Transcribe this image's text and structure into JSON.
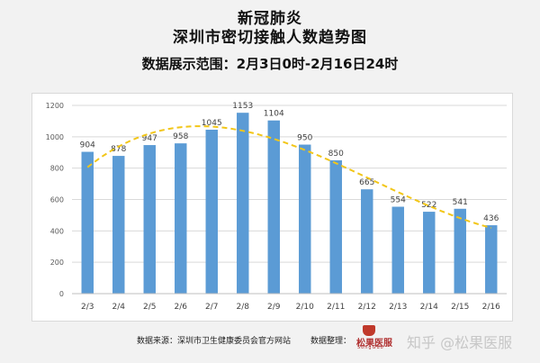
{
  "header": {
    "title_line1": "新冠肺炎",
    "title_line2": "深圳市密切接触人数趋势图",
    "subtitle": "数据展示范围：2月3日0时-2月16日24时"
  },
  "footer": {
    "source": "数据来源：深圳市卫生健康委员会官方网站",
    "compiler": "数据整理：",
    "logo_text": "松果医服",
    "logo_sub": "SongGuo",
    "watermark": "知乎 @松果医服"
  },
  "colors": {
    "bar": "#5b9bd5",
    "trend": "#f2c618",
    "grid": "#d9d9d9"
  },
  "chart_data": {
    "type": "bar",
    "categories": [
      "2/3",
      "2/4",
      "2/5",
      "2/6",
      "2/7",
      "2/8",
      "2/9",
      "2/10",
      "2/11",
      "2/12",
      "2/13",
      "2/14",
      "2/15",
      "2/16"
    ],
    "values": [
      904,
      878,
      947,
      958,
      1045,
      1153,
      1104,
      950,
      850,
      665,
      554,
      522,
      541,
      436
    ],
    "yticks": [
      0,
      200,
      400,
      600,
      800,
      1000,
      1200
    ],
    "ylim": [
      0,
      1200
    ],
    "trendline": "polynomial, dashed",
    "grid": true
  }
}
